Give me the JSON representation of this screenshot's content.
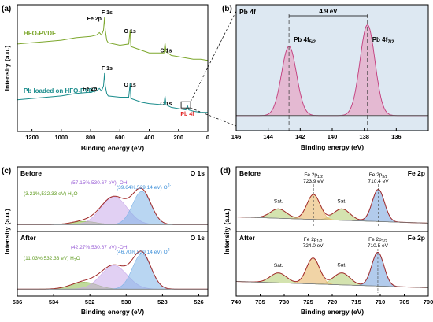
{
  "chart_data": [
    {
      "panel": "(a)",
      "type": "line",
      "xlabel": "Binding energy (eV)",
      "ylabel": "Intensity (a.u.)",
      "xlim": [
        1300,
        0
      ],
      "x_ticks": [
        "1200",
        "1000",
        "800",
        "600",
        "400",
        "200",
        "0"
      ],
      "series": [
        {
          "name": "HFO-PVDF",
          "color": "#7da72d",
          "points": [
            [
              1300,
              0.69
            ],
            [
              1200,
              0.7
            ],
            [
              1100,
              0.71
            ],
            [
              1000,
              0.72
            ],
            [
              900,
              0.74
            ],
            [
              800,
              0.75
            ],
            [
              760,
              0.76
            ],
            [
              740,
              0.78
            ],
            [
              725,
              0.76
            ],
            [
              712,
              0.8
            ],
            [
              705,
              0.9
            ],
            [
              700,
              0.8
            ],
            [
              690,
              0.72
            ],
            [
              680,
              0.7
            ],
            [
              600,
              0.68
            ],
            [
              540,
              0.69
            ],
            [
              530,
              0.8
            ],
            [
              525,
              0.67
            ],
            [
              450,
              0.64
            ],
            [
              400,
              0.62
            ],
            [
              300,
              0.62
            ],
            [
              292,
              0.7
            ],
            [
              285,
              0.63
            ],
            [
              250,
              0.6
            ],
            [
              200,
              0.59
            ],
            [
              150,
              0.58
            ],
            [
              100,
              0.57
            ],
            [
              50,
              0.57
            ],
            [
              0,
              0.56
            ]
          ]
        },
        {
          "name": "Pb loaded on HFO-PVDF",
          "color": "#1a8c8c",
          "points": [
            [
              1300,
              0.25
            ],
            [
              1200,
              0.26
            ],
            [
              1100,
              0.27
            ],
            [
              1000,
              0.28
            ],
            [
              900,
              0.3
            ],
            [
              800,
              0.31
            ],
            [
              760,
              0.32
            ],
            [
              740,
              0.34
            ],
            [
              725,
              0.32
            ],
            [
              712,
              0.36
            ],
            [
              705,
              0.46
            ],
            [
              700,
              0.36
            ],
            [
              690,
              0.3
            ],
            [
              680,
              0.28
            ],
            [
              600,
              0.27
            ],
            [
              540,
              0.27
            ],
            [
              530,
              0.38
            ],
            [
              525,
              0.26
            ],
            [
              450,
              0.23
            ],
            [
              400,
              0.22
            ],
            [
              300,
              0.21
            ],
            [
              292,
              0.28
            ],
            [
              285,
              0.21
            ],
            [
              250,
              0.19
            ],
            [
              200,
              0.18
            ],
            [
              150,
              0.17
            ],
            [
              143,
              0.19
            ],
            [
              138,
              0.2
            ],
            [
              130,
              0.17
            ],
            [
              100,
              0.16
            ],
            [
              50,
              0.15
            ],
            [
              0,
              0.15
            ]
          ]
        }
      ],
      "peak_labels": [
        {
          "text": "Fe 2p",
          "x": 710,
          "curve": "HFO-PVDF"
        },
        {
          "text": "F 1s",
          "x": 688,
          "curve": "HFO-PVDF"
        },
        {
          "text": "O 1s",
          "x": 531,
          "curve": "HFO-PVDF"
        },
        {
          "text": "C 1s",
          "x": 285,
          "curve": "HFO-PVDF"
        },
        {
          "text": "F 1s",
          "x": 688,
          "curve": "Pb loaded on HFO-PVDF"
        },
        {
          "text": "Fe 2p",
          "x": 730,
          "curve": "Pb loaded on HFO-PVDF"
        },
        {
          "text": "O 1s",
          "x": 531,
          "curve": "Pb loaded on HFO-PVDF"
        },
        {
          "text": "C 1s",
          "x": 285,
          "curve": "Pb loaded on HFO-PVDF"
        },
        {
          "text": "Pb 4f",
          "x": 140,
          "curve": "Pb loaded on HFO-PVDF",
          "color": "#e02020"
        }
      ],
      "colors": {
        "frame": "#000000"
      }
    },
    {
      "panel": "(b)",
      "type": "line",
      "title": "Pb 4f",
      "xlabel": "Binding energy (eV)",
      "xlim": [
        146,
        134
      ],
      "x_ticks": [
        "146",
        "144",
        "142",
        "140",
        "138",
        "136"
      ],
      "background": "#dde8f2",
      "series": [
        {
          "name": "Pb 4f5/2",
          "center": 142.7,
          "fwhm": 1.1,
          "height": 0.55,
          "color": "#e8a0c0"
        },
        {
          "name": "Pb 4f7/2",
          "center": 137.8,
          "fwhm": 1.1,
          "height": 0.72,
          "color": "#e8a0c0"
        }
      ],
      "baseline": 0.12,
      "annotations": [
        {
          "text": "4.9 eV",
          "from": 142.7,
          "to": 137.8
        },
        {
          "text": "Pb 4f",
          "sub": "5/2",
          "x": 142.7
        },
        {
          "text": "Pb 4f",
          "sub": "7/2",
          "x": 137.8
        }
      ]
    },
    {
      "panel": "(c)",
      "type": "line",
      "corner_label": "O 1s",
      "xlabel": "Binding energy (eV)",
      "ylabel": "Intensity (a.u.)",
      "xlim": [
        536,
        525.5
      ],
      "x_ticks": [
        "536",
        "534",
        "532",
        "530",
        "528",
        "526"
      ],
      "subpanels": [
        {
          "label": "Before",
          "components": [
            {
              "name": "(39.64%,529.14 eV) O2-",
              "text": "(39.64%,529.14 eV) O",
              "sup": "2-",
              "center": 529.14,
              "fwhm": 1.2,
              "height": 0.62,
              "color": "#7fb4e8"
            },
            {
              "name": "(57.15%,530.67 eV) -OH",
              "text": "(57.15%,530.67 eV) -OH",
              "center": 530.67,
              "fwhm": 1.7,
              "height": 0.52,
              "color": "#c9a9ea"
            },
            {
              "name": "(3.21%,532.33 eV) H2O",
              "text": "(3.21%,532.33 eV) H",
              "sub": "2",
              "tail": "O",
              "center": 532.33,
              "fwhm": 1.6,
              "height": 0.06,
              "color": "#8cbc4a"
            }
          ]
        },
        {
          "label": "After",
          "components": [
            {
              "name": "(46.70%,529.14 eV) O2-",
              "text": "(46.70%,529.14 eV) O",
              "sup": "2-",
              "center": 529.14,
              "fwhm": 1.2,
              "height": 0.66,
              "color": "#7fb4e8"
            },
            {
              "name": "(42.27%,530.67 eV) -OH",
              "text": "(42.27%,530.67 eV) -OH",
              "center": 530.67,
              "fwhm": 1.7,
              "height": 0.44,
              "color": "#c9a9ea"
            },
            {
              "name": "(11.03%,532.33 eV) H2O",
              "text": "(11.03%,532.33 eV) H",
              "sub": "2",
              "tail": "O",
              "center": 532.33,
              "fwhm": 1.7,
              "height": 0.13,
              "color": "#8cbc4a"
            }
          ]
        }
      ],
      "envelope_color": "#a02828"
    },
    {
      "panel": "(d)",
      "type": "line",
      "corner_label": "Fe 2p",
      "xlabel": "Binding energy (eV)",
      "ylabel": "Intensity (a.u.)",
      "xlim": [
        740,
        700
      ],
      "x_ticks": [
        "740",
        "735",
        "730",
        "725",
        "720",
        "715",
        "710",
        "705",
        "700"
      ],
      "subpanels": [
        {
          "label": "Before",
          "peaks": [
            {
              "text": "Fe 2p",
              "sub": "1/2",
              "value": "723.9 eV",
              "center": 723.9,
              "fwhm": 3.2,
              "height": 0.48,
              "color": "#e8b86a"
            },
            {
              "text": "Fe 2p",
              "sub": "3/2",
              "value": "710.4 eV",
              "center": 710.4,
              "fwhm": 3.0,
              "height": 0.62,
              "color": "#7fa8e0"
            }
          ],
          "satellites": [
            {
              "text": "Sat.",
              "center": 731.2,
              "fwhm": 4.0,
              "height": 0.18
            },
            {
              "text": "Sat.",
              "center": 718.0,
              "fwhm": 4.0,
              "height": 0.22
            }
          ]
        },
        {
          "label": "After",
          "peaks": [
            {
              "text": "Fe 2p",
              "sub": "1/2",
              "value": "724.0 eV",
              "center": 724.0,
              "fwhm": 3.2,
              "height": 0.5,
              "color": "#e8b86a"
            },
            {
              "text": "Fe 2p",
              "sub": "3/2",
              "value": "710.5 eV",
              "center": 710.5,
              "fwhm": 3.0,
              "height": 0.65,
              "color": "#7fa8e0"
            }
          ],
          "satellites": [
            {
              "text": "Sat.",
              "center": 731.2,
              "fwhm": 4.0,
              "height": 0.19
            },
            {
              "text": "Sat.",
              "center": 718.0,
              "fwhm": 4.0,
              "height": 0.23
            }
          ]
        }
      ],
      "satellite_color": "#b8d07a",
      "envelope_color": "#a02828"
    }
  ]
}
